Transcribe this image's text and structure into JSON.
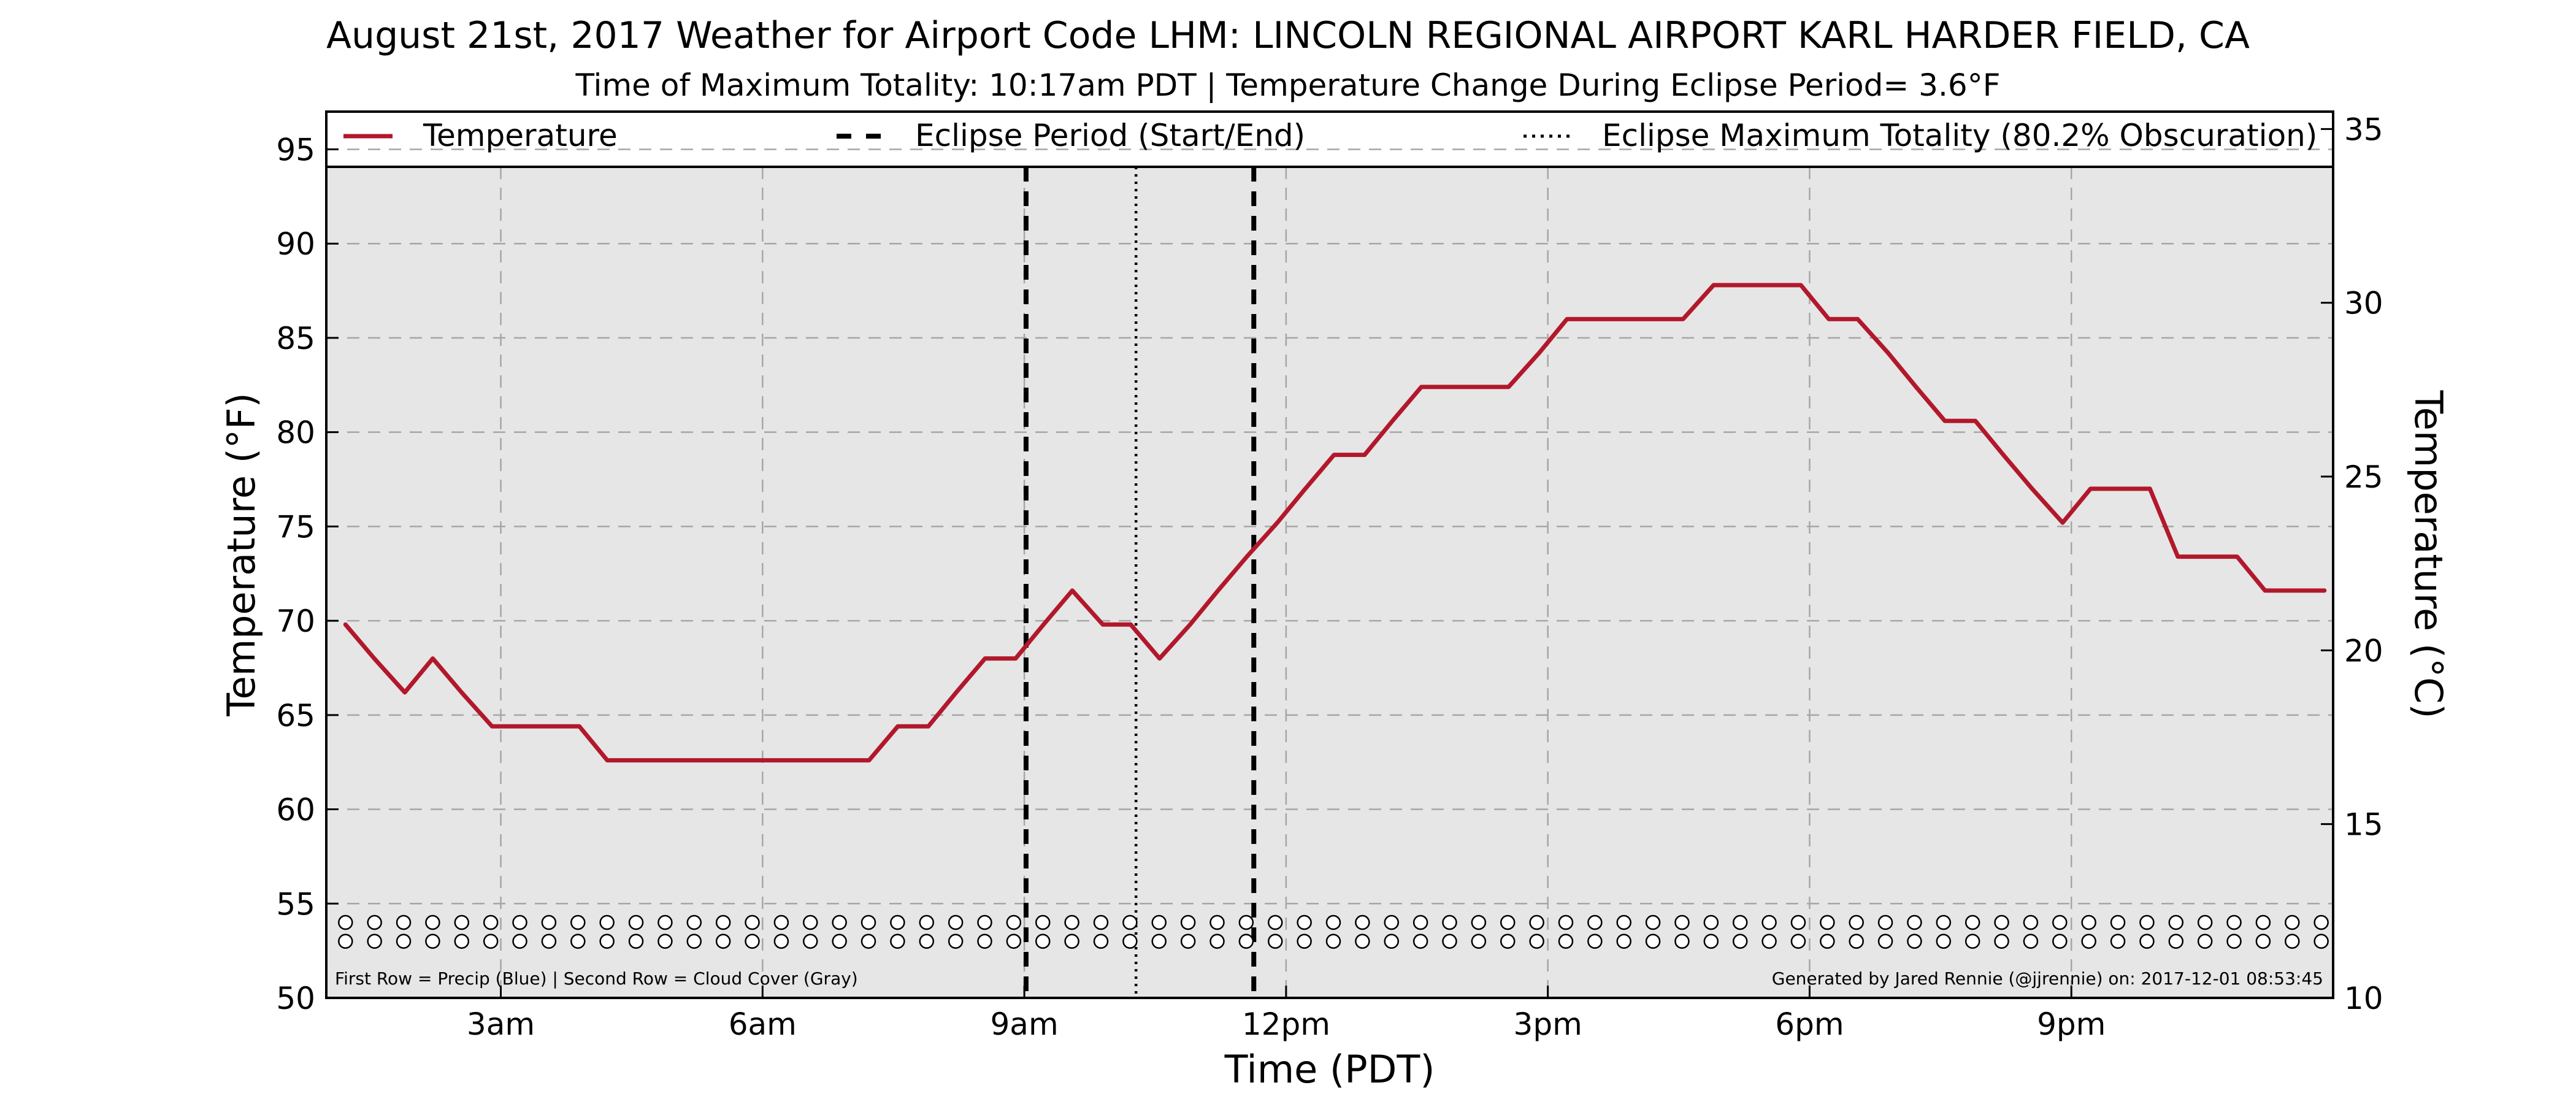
{
  "chart_data": {
    "type": "line",
    "title": "August 21st, 2017 Weather for Airport Code LHM: LINCOLN REGIONAL AIRPORT KARL HARDER FIELD, CA",
    "subtitle": "Time of Maximum Totality: 10:17am PDT | Temperature Change During Eclipse Period= 3.6",
    "subtitle_unit": "°F",
    "xlabel": "Time (PDT)",
    "ylabel": "Temperature (°F)",
    "y2label": "Temperature (°C)",
    "xlim_hours": [
      1,
      24
    ],
    "ylim": [
      50,
      97
    ],
    "y2lim": [
      10,
      35.5
    ],
    "x_ticks": [
      {
        "hour": 3,
        "label": "3am"
      },
      {
        "hour": 6,
        "label": "6am"
      },
      {
        "hour": 9,
        "label": "9am"
      },
      {
        "hour": 12,
        "label": "12pm"
      },
      {
        "hour": 15,
        "label": "3pm"
      },
      {
        "hour": 18,
        "label": "6pm"
      },
      {
        "hour": 21,
        "label": "9pm"
      }
    ],
    "y_ticks": [
      50,
      55,
      60,
      65,
      70,
      75,
      80,
      85,
      90,
      95
    ],
    "y2_ticks": [
      10,
      15,
      20,
      25,
      30,
      35
    ],
    "grid": true,
    "legend_position": "top",
    "legend": [
      {
        "name": "Temperature",
        "style": "solid"
      },
      {
        "name": "Eclipse Period (Start/End)",
        "style": "dashed"
      },
      {
        "name": "Eclipse Maximum Totality (80.2% Obscuration)",
        "style": "dotted"
      }
    ],
    "series": [
      {
        "name": "Temperature",
        "color": "#b2182b",
        "x_hours": [
          1.22,
          1.55,
          1.9,
          2.22,
          2.55,
          2.9,
          3.22,
          3.55,
          3.9,
          4.22,
          4.55,
          4.9,
          5.22,
          5.55,
          5.9,
          6.22,
          6.55,
          6.9,
          7.22,
          7.55,
          7.9,
          8.22,
          8.55,
          8.9,
          9.22,
          9.55,
          9.9,
          10.22,
          10.55,
          10.9,
          11.22,
          11.55,
          11.9,
          12.22,
          12.55,
          12.9,
          13.22,
          13.55,
          13.9,
          14.22,
          14.55,
          14.9,
          15.22,
          15.55,
          15.9,
          16.22,
          16.55,
          16.9,
          17.22,
          17.55,
          17.9,
          18.22,
          18.55,
          18.9,
          19.22,
          19.55,
          19.9,
          20.22,
          20.55,
          20.9,
          21.22,
          21.55,
          21.9,
          22.22,
          22.55,
          22.9,
          23.22,
          23.55,
          23.9
        ],
        "values": [
          69.8,
          68.0,
          66.2,
          68.0,
          66.2,
          64.4,
          64.4,
          64.4,
          64.4,
          62.6,
          62.6,
          62.6,
          62.6,
          62.6,
          62.6,
          62.6,
          62.6,
          62.6,
          62.6,
          64.4,
          64.4,
          66.2,
          68.0,
          68.0,
          69.8,
          71.6,
          69.8,
          69.8,
          68.0,
          69.8,
          71.6,
          73.4,
          75.2,
          77.0,
          78.8,
          78.8,
          80.6,
          82.4,
          82.4,
          82.4,
          82.4,
          84.2,
          86.0,
          86.0,
          86.0,
          86.0,
          86.0,
          87.8,
          87.8,
          87.8,
          87.8,
          86.0,
          86.0,
          84.2,
          82.4,
          80.6,
          80.6,
          78.8,
          77.0,
          75.2,
          77.0,
          77.0,
          77.0,
          73.4,
          73.4,
          73.4,
          71.6,
          71.6,
          71.6
        ]
      }
    ],
    "eclipse_start_hour": 9.02,
    "eclipse_max_hour": 10.28,
    "eclipse_end_hour": 11.63,
    "marker_rows": {
      "x_start_hour": 1.22,
      "spacing_hours": 0.333,
      "row1_value": 54,
      "row2_value": 53,
      "row1_color": "#ffffff",
      "row2_color": "#ffffff"
    },
    "annotations": {
      "bottom_left": "First Row = Precip (Blue) | Second Row = Cloud Cover (Gray)",
      "bottom_right": "Generated by Jared Rennie (@jjrennie) on: 2017-12-01 08:53:45"
    }
  }
}
